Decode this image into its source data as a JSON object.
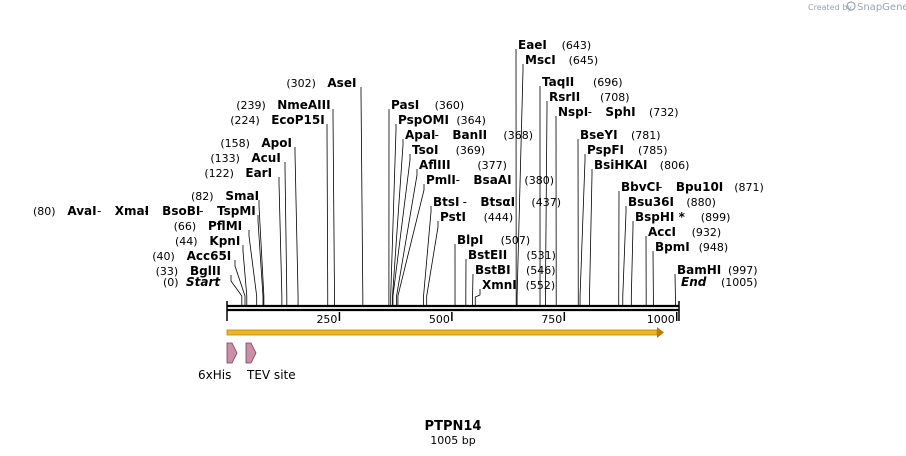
{
  "credit": {
    "created_by": "Created by",
    "brand": "SnapGene"
  },
  "map": {
    "title": "PTPN14",
    "subtitle": "1005 bp",
    "length": 1005,
    "ticks": [
      {
        "pos": 250,
        "label": "250"
      },
      {
        "pos": 500,
        "label": "500"
      },
      {
        "pos": 750,
        "label": "750"
      },
      {
        "pos": 1000,
        "label": "1000"
      }
    ],
    "start_label": {
      "name": "Start",
      "pos": "(0)"
    },
    "end_label": {
      "name": "End",
      "pos": "(1005)"
    },
    "colors": {
      "backbone": "#000000",
      "orf_fill": "#f0b429",
      "orf_stroke": "#b8860b",
      "feature_fill": "#c98fa8",
      "feature_stroke": "#7a3d5a",
      "line": "#000000"
    }
  },
  "sites": [
    {
      "names": [
        "BglII"
      ],
      "pos": 33,
      "pos_label": "(33)"
    },
    {
      "names": [
        "Acc65I"
      ],
      "pos": 40,
      "pos_label": "(40)"
    },
    {
      "names": [
        "KpnI"
      ],
      "pos": 44,
      "pos_label": "(44)"
    },
    {
      "names": [
        "PflMI"
      ],
      "pos": 66,
      "pos_label": "(66)"
    },
    {
      "names": [
        "AvaI",
        "XmaI",
        "BsoBI",
        "TspMI"
      ],
      "pos": 80,
      "pos_label": "(80)"
    },
    {
      "names": [
        "SmaI"
      ],
      "pos": 82,
      "pos_label": "(82)"
    },
    {
      "names": [
        "EarI"
      ],
      "pos": 122,
      "pos_label": "(122)"
    },
    {
      "names": [
        "AcuI"
      ],
      "pos": 133,
      "pos_label": "(133)"
    },
    {
      "names": [
        "ApoI"
      ],
      "pos": 158,
      "pos_label": "(158)"
    },
    {
      "names": [
        "EcoP15I"
      ],
      "pos": 224,
      "pos_label": "(224)"
    },
    {
      "names": [
        "NmeAIII"
      ],
      "pos": 239,
      "pos_label": "(239)"
    },
    {
      "names": [
        "AseI"
      ],
      "pos": 302,
      "pos_label": "(302)"
    },
    {
      "names": [
        "PasI"
      ],
      "pos": 360,
      "pos_label": "(360)"
    },
    {
      "names": [
        "PspOMI"
      ],
      "pos": 364,
      "pos_label": "(364)"
    },
    {
      "names": [
        "ApaI",
        "BanII"
      ],
      "pos": 368,
      "pos_label": "(368)"
    },
    {
      "names": [
        "TsoI"
      ],
      "pos": 369,
      "pos_label": "(369)"
    },
    {
      "names": [
        "AflIII"
      ],
      "pos": 377,
      "pos_label": "(377)"
    },
    {
      "names": [
        "PmlI",
        "BsaAI"
      ],
      "pos": 380,
      "pos_label": "(380)"
    },
    {
      "names": [
        "BtsI",
        "BtsαI"
      ],
      "pos": 437,
      "pos_label": "(437)"
    },
    {
      "names": [
        "PstI"
      ],
      "pos": 444,
      "pos_label": "(444)"
    },
    {
      "names": [
        "BlpI"
      ],
      "pos": 507,
      "pos_label": "(507)"
    },
    {
      "names": [
        "BstEII"
      ],
      "pos": 531,
      "pos_label": "(531)"
    },
    {
      "names": [
        "BstBI"
      ],
      "pos": 546,
      "pos_label": "(546)"
    },
    {
      "names": [
        "XmnI"
      ],
      "pos": 552,
      "pos_label": "(552)"
    },
    {
      "names": [
        "EaeI"
      ],
      "pos": 643,
      "pos_label": "(643)"
    },
    {
      "names": [
        "MscI"
      ],
      "pos": 645,
      "pos_label": "(645)"
    },
    {
      "names": [
        "TaqII"
      ],
      "pos": 696,
      "pos_label": "(696)"
    },
    {
      "names": [
        "RsrII"
      ],
      "pos": 708,
      "pos_label": "(708)"
    },
    {
      "names": [
        "NspI",
        "SphI"
      ],
      "pos": 732,
      "pos_label": "(732)"
    },
    {
      "names": [
        "BseYI"
      ],
      "pos": 781,
      "pos_label": "(781)"
    },
    {
      "names": [
        "PspFI"
      ],
      "pos": 785,
      "pos_label": "(785)"
    },
    {
      "names": [
        "BsiHKAI"
      ],
      "pos": 806,
      "pos_label": "(806)"
    },
    {
      "names": [
        "BbvCI",
        "Bpu10I"
      ],
      "pos": 871,
      "pos_label": "(871)"
    },
    {
      "names": [
        "Bsu36I"
      ],
      "pos": 880,
      "pos_label": "(880)"
    },
    {
      "names": [
        "BspHI *"
      ],
      "pos": 899,
      "pos_label": "(899)"
    },
    {
      "names": [
        "AccI"
      ],
      "pos": 932,
      "pos_label": "(932)"
    },
    {
      "names": [
        "BpmI"
      ],
      "pos": 948,
      "pos_label": "(948)"
    },
    {
      "names": [
        "BamHI"
      ],
      "pos": 997,
      "pos_label": "(997)"
    }
  ],
  "features": [
    {
      "name": "6xHis",
      "start": 0,
      "end": 18
    },
    {
      "name": "TEV site",
      "start": 45,
      "end": 66
    }
  ]
}
